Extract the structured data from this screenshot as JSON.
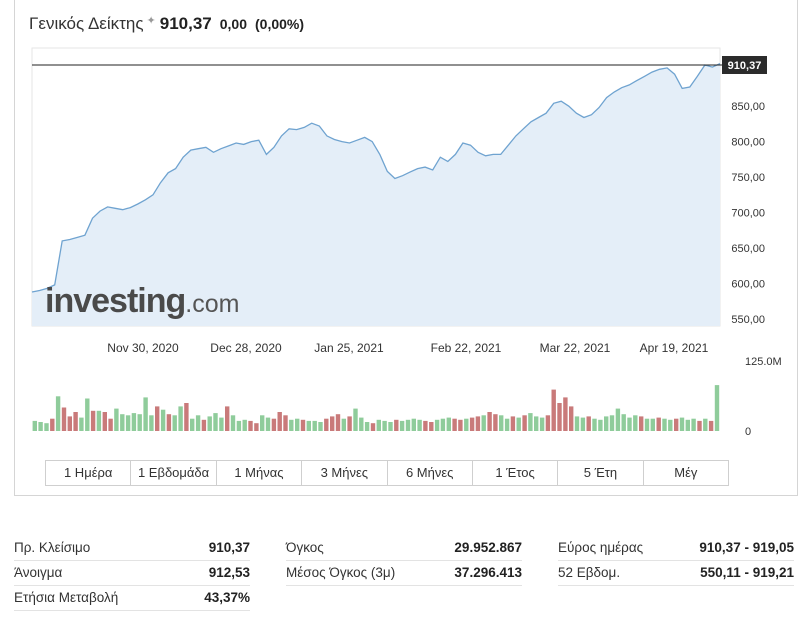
{
  "header": {
    "name": "Γενικός Δείκτης",
    "star": "✦",
    "price": "910,37",
    "change": "0,00",
    "change_pct": "(0,00%)"
  },
  "watermark": {
    "brand": "investing",
    "suffix": ".com"
  },
  "colors": {
    "line": "#6fa3d0",
    "area": "#e4eef8",
    "vol_up": "#8fcc9b",
    "vol_down": "#c97a7a",
    "price_label_bg": "#2b2b2b",
    "grid": "#e6e6e6"
  },
  "chart_data": {
    "type": "line",
    "x_tick_labels": [
      "Nov 30, 2020",
      "Dec 28, 2020",
      "Jan 25, 2021",
      "Feb 22, 2021",
      "Mar 22, 2021",
      "Apr 19, 2021"
    ],
    "y_tick_labels": [
      "850,00",
      "800,00",
      "750,00",
      "700,00",
      "650,00",
      "600,00",
      "550,00"
    ],
    "y_ticks": [
      850,
      800,
      750,
      700,
      650,
      600,
      550
    ],
    "ylim": [
      540,
      932
    ],
    "last_price_label": "910,37",
    "last_price": 910.37,
    "series": [
      {
        "values": [
          588,
          590,
          593,
          598,
          660,
          662,
          665,
          668,
          692,
          702,
          708,
          706,
          704,
          707,
          712,
          718,
          725,
          742,
          756,
          762,
          778,
          788,
          790,
          792,
          785,
          790,
          794,
          798,
          796,
          800,
          802,
          782,
          792,
          808,
          818,
          817,
          820,
          826,
          822,
          808,
          803,
          800,
          798,
          802,
          806,
          800,
          782,
          758,
          748,
          752,
          757,
          762,
          764,
          760,
          778,
          772,
          782,
          798,
          795,
          785,
          780,
          782,
          782,
          795,
          808,
          818,
          828,
          834,
          840,
          854,
          857,
          850,
          840,
          834,
          838,
          848,
          862,
          870,
          876,
          880,
          886,
          892,
          898,
          902,
          904,
          895,
          875,
          877,
          892,
          908,
          905,
          910
        ]
      }
    ],
    "volume": {
      "axis_labels": [
        "125.0M",
        "0"
      ],
      "ylim": [
        0,
        125
      ],
      "bars": [
        {
          "v": 18,
          "up": true
        },
        {
          "v": 16,
          "up": true
        },
        {
          "v": 14,
          "up": true
        },
        {
          "v": 22,
          "up": false
        },
        {
          "v": 62,
          "up": true
        },
        {
          "v": 42,
          "up": false
        },
        {
          "v": 26,
          "up": false
        },
        {
          "v": 34,
          "up": false
        },
        {
          "v": 24,
          "up": true
        },
        {
          "v": 58,
          "up": true
        },
        {
          "v": 36,
          "up": false
        },
        {
          "v": 36,
          "up": true
        },
        {
          "v": 34,
          "up": false
        },
        {
          "v": 22,
          "up": false
        },
        {
          "v": 40,
          "up": true
        },
        {
          "v": 30,
          "up": true
        },
        {
          "v": 28,
          "up": true
        },
        {
          "v": 32,
          "up": true
        },
        {
          "v": 30,
          "up": true
        },
        {
          "v": 60,
          "up": true
        },
        {
          "v": 28,
          "up": true
        },
        {
          "v": 44,
          "up": false
        },
        {
          "v": 38,
          "up": true
        },
        {
          "v": 30,
          "up": false
        },
        {
          "v": 28,
          "up": true
        },
        {
          "v": 44,
          "up": true
        },
        {
          "v": 50,
          "up": false
        },
        {
          "v": 22,
          "up": true
        },
        {
          "v": 28,
          "up": true
        },
        {
          "v": 20,
          "up": false
        },
        {
          "v": 26,
          "up": true
        },
        {
          "v": 32,
          "up": true
        },
        {
          "v": 24,
          "up": true
        },
        {
          "v": 44,
          "up": false
        },
        {
          "v": 28,
          "up": true
        },
        {
          "v": 18,
          "up": true
        },
        {
          "v": 20,
          "up": true
        },
        {
          "v": 18,
          "up": false
        },
        {
          "v": 14,
          "up": false
        },
        {
          "v": 28,
          "up": true
        },
        {
          "v": 24,
          "up": true
        },
        {
          "v": 22,
          "up": false
        },
        {
          "v": 34,
          "up": false
        },
        {
          "v": 28,
          "up": false
        },
        {
          "v": 20,
          "up": true
        },
        {
          "v": 22,
          "up": true
        },
        {
          "v": 20,
          "up": false
        },
        {
          "v": 18,
          "up": true
        },
        {
          "v": 18,
          "up": true
        },
        {
          "v": 16,
          "up": true
        },
        {
          "v": 22,
          "up": false
        },
        {
          "v": 26,
          "up": false
        },
        {
          "v": 30,
          "up": false
        },
        {
          "v": 22,
          "up": true
        },
        {
          "v": 26,
          "up": false
        },
        {
          "v": 40,
          "up": true
        },
        {
          "v": 24,
          "up": true
        },
        {
          "v": 16,
          "up": true
        },
        {
          "v": 14,
          "up": false
        },
        {
          "v": 20,
          "up": true
        },
        {
          "v": 18,
          "up": true
        },
        {
          "v": 16,
          "up": true
        },
        {
          "v": 20,
          "up": false
        },
        {
          "v": 18,
          "up": true
        },
        {
          "v": 20,
          "up": true
        },
        {
          "v": 22,
          "up": true
        },
        {
          "v": 20,
          "up": true
        },
        {
          "v": 18,
          "up": false
        },
        {
          "v": 16,
          "up": false
        },
        {
          "v": 20,
          "up": true
        },
        {
          "v": 22,
          "up": true
        },
        {
          "v": 24,
          "up": true
        },
        {
          "v": 22,
          "up": false
        },
        {
          "v": 20,
          "up": false
        },
        {
          "v": 22,
          "up": true
        },
        {
          "v": 24,
          "up": false
        },
        {
          "v": 26,
          "up": false
        },
        {
          "v": 28,
          "up": true
        },
        {
          "v": 34,
          "up": false
        },
        {
          "v": 30,
          "up": false
        },
        {
          "v": 28,
          "up": true
        },
        {
          "v": 22,
          "up": true
        },
        {
          "v": 26,
          "up": false
        },
        {
          "v": 24,
          "up": true
        },
        {
          "v": 28,
          "up": false
        },
        {
          "v": 32,
          "up": true
        },
        {
          "v": 26,
          "up": true
        },
        {
          "v": 24,
          "up": true
        },
        {
          "v": 28,
          "up": false
        },
        {
          "v": 74,
          "up": false
        },
        {
          "v": 50,
          "up": false
        },
        {
          "v": 60,
          "up": false
        },
        {
          "v": 44,
          "up": false
        },
        {
          "v": 26,
          "up": true
        },
        {
          "v": 24,
          "up": true
        },
        {
          "v": 26,
          "up": false
        },
        {
          "v": 22,
          "up": true
        },
        {
          "v": 20,
          "up": true
        },
        {
          "v": 26,
          "up": true
        },
        {
          "v": 28,
          "up": true
        },
        {
          "v": 40,
          "up": true
        },
        {
          "v": 30,
          "up": true
        },
        {
          "v": 24,
          "up": true
        },
        {
          "v": 28,
          "up": true
        },
        {
          "v": 26,
          "up": false
        },
        {
          "v": 22,
          "up": true
        },
        {
          "v": 22,
          "up": true
        },
        {
          "v": 24,
          "up": false
        },
        {
          "v": 22,
          "up": true
        },
        {
          "v": 20,
          "up": true
        },
        {
          "v": 22,
          "up": false
        },
        {
          "v": 24,
          "up": true
        },
        {
          "v": 20,
          "up": true
        },
        {
          "v": 22,
          "up": true
        },
        {
          "v": 18,
          "up": false
        },
        {
          "v": 22,
          "up": true
        },
        {
          "v": 18,
          "up": false
        },
        {
          "v": 82,
          "up": true
        }
      ]
    }
  },
  "tabs": [
    "1 Ημέρα",
    "1 Εβδομάδα",
    "1 Μήνας",
    "3 Μήνες",
    "6 Μήνες",
    "1 Έτος",
    "5 Έτη",
    "Μέγ"
  ],
  "stats": {
    "col1": [
      {
        "label": "Πρ. Κλείσιμο",
        "value": "910,37"
      },
      {
        "label": "Άνοιγμα",
        "value": "912,53"
      },
      {
        "label": "Ετήσια Μεταβολή",
        "value": "43,37%"
      }
    ],
    "col2": [
      {
        "label": "Όγκος",
        "value": "29.952.867"
      },
      {
        "label": "Μέσος Όγκος (3μ)",
        "value": "37.296.413"
      }
    ],
    "col3": [
      {
        "label": "Εύρος ημέρας",
        "value": "910,37 - 919,05"
      },
      {
        "label": "52 Εβδομ.",
        "value": "550,11 - 919,21"
      }
    ]
  }
}
